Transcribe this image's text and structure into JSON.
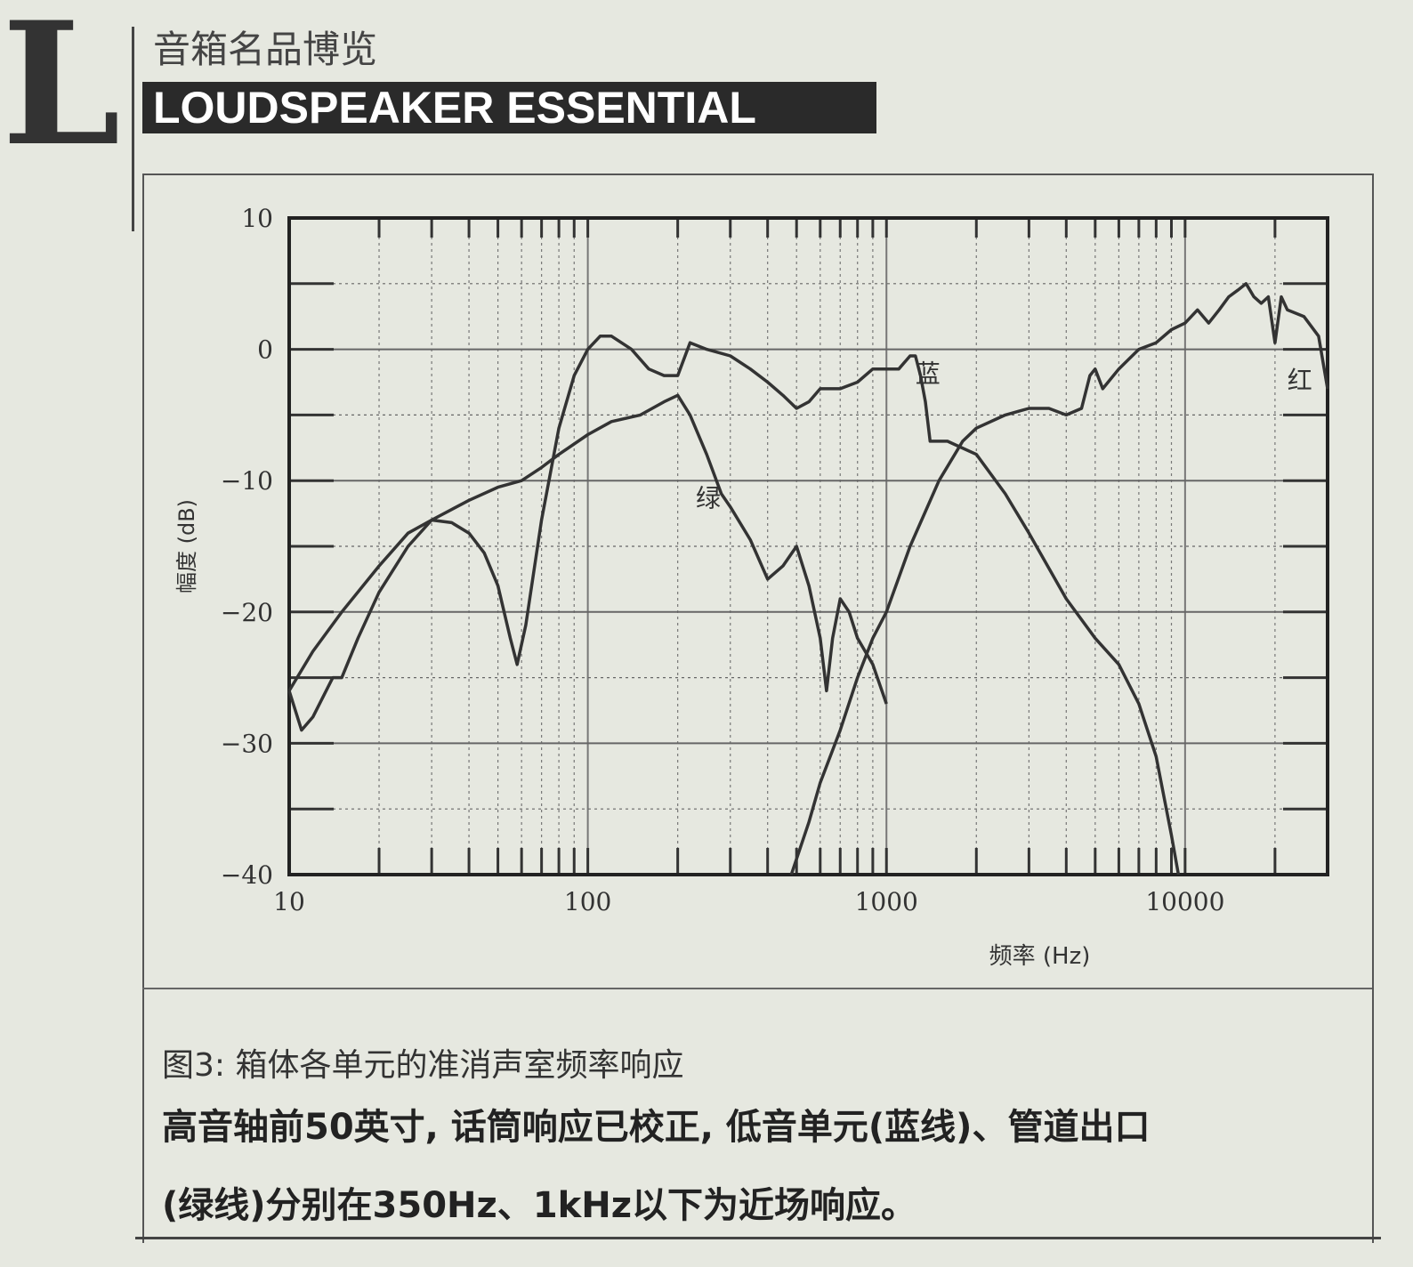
{
  "header": {
    "logo_letter": "L",
    "subtitle": "音箱名品博览",
    "banner": "LOUDSPEAKER ESSENTIAL"
  },
  "caption": {
    "figure": "图3:  箱体各单元的准消声室频率响应",
    "line1": "高音轴前50英寸, 话筒响应已校正, 低音单元(蓝线)、管道出口",
    "line2": "(绿线)分别在350Hz、1kHz以下为近场响应。"
  },
  "chart_data": {
    "type": "line",
    "xlabel": "频率 (Hz)",
    "ylabel": "幅度 (dB)",
    "xscale": "log",
    "xlim": [
      10,
      30000
    ],
    "ylim": [
      -40,
      10
    ],
    "xticks": [
      10,
      100,
      1000,
      10000
    ],
    "xtick_labels": [
      "10",
      "100",
      "1000",
      "10000"
    ],
    "yticks": [
      10,
      0,
      -10,
      -20,
      -30,
      -40
    ],
    "ytick_labels": [
      "10",
      "0",
      "−10",
      "−20",
      "−30",
      "−40"
    ],
    "grid": true,
    "line_color": "#333333",
    "series": [
      {
        "name": "蓝",
        "label_at": [
          1250,
          -2.5
        ],
        "x": [
          10,
          12,
          15,
          20,
          25,
          30,
          35,
          40,
          45,
          50,
          55,
          58,
          62,
          70,
          80,
          90,
          100,
          110,
          120,
          140,
          160,
          180,
          200,
          220,
          250,
          300,
          350,
          400,
          450,
          500,
          550,
          600,
          700,
          800,
          900,
          1000,
          1100,
          1200,
          1250,
          1300,
          1350,
          1400,
          1600,
          2000,
          2500,
          3000,
          4000,
          5000,
          6000,
          7000,
          8000,
          9000,
          9500
        ],
        "y": [
          -26,
          -23,
          -20,
          -16.5,
          -14,
          -13,
          -13.2,
          -14,
          -15.5,
          -18,
          -22,
          -24,
          -21,
          -13,
          -6,
          -2,
          0,
          1,
          1,
          0,
          -1.5,
          -2,
          -2,
          0.5,
          0,
          -0.5,
          -1.5,
          -2.5,
          -3.5,
          -4.5,
          -4,
          -3,
          -3,
          -2.5,
          -1.5,
          -1.5,
          -1.5,
          -0.5,
          -0.5,
          -2,
          -4,
          -7,
          -7,
          -8,
          -11,
          -14,
          -19,
          -22,
          -24,
          -27,
          -31,
          -37,
          -40
        ]
      },
      {
        "name": "绿",
        "label_at": [
          230,
          -12
        ],
        "x": [
          10,
          11,
          12,
          14,
          15,
          17,
          20,
          25,
          30,
          40,
          50,
          60,
          70,
          80,
          100,
          120,
          150,
          180,
          200,
          220,
          250,
          280,
          300,
          350,
          400,
          450,
          500,
          550,
          600,
          630,
          660,
          700,
          750,
          800,
          900,
          1000
        ],
        "y": [
          -26,
          -29,
          -28,
          -25,
          -25,
          -22,
          -18.5,
          -15,
          -13,
          -11.5,
          -10.5,
          -10,
          -9,
          -8,
          -6.5,
          -5.5,
          -5,
          -4,
          -3.5,
          -5,
          -8,
          -11,
          -12,
          -14.5,
          -17.5,
          -16.5,
          -15,
          -18,
          -22,
          -26,
          -22,
          -19,
          -20,
          -22,
          -24,
          -27
        ]
      },
      {
        "name": "红",
        "label_at": [
          22000,
          -3
        ],
        "x": [
          480,
          550,
          600,
          700,
          800,
          900,
          1000,
          1200,
          1500,
          1800,
          2000,
          2500,
          3000,
          3500,
          4000,
          4500,
          4800,
          5000,
          5300,
          6000,
          7000,
          8000,
          9000,
          10000,
          11000,
          12000,
          13000,
          14000,
          15000,
          16000,
          17000,
          18000,
          19000,
          20000,
          21000,
          22000,
          25000,
          28000,
          30000
        ],
        "y": [
          -40,
          -36,
          -33,
          -29,
          -25,
          -22,
          -20,
          -15,
          -10,
          -7,
          -6,
          -5,
          -4.5,
          -4.5,
          -5,
          -4.5,
          -2,
          -1.5,
          -3,
          -1.5,
          0,
          0.5,
          1.5,
          2,
          3,
          2,
          3,
          4,
          4.5,
          5,
          4,
          3.5,
          4,
          0.5,
          4,
          3,
          2.5,
          1,
          -3
        ]
      }
    ]
  }
}
